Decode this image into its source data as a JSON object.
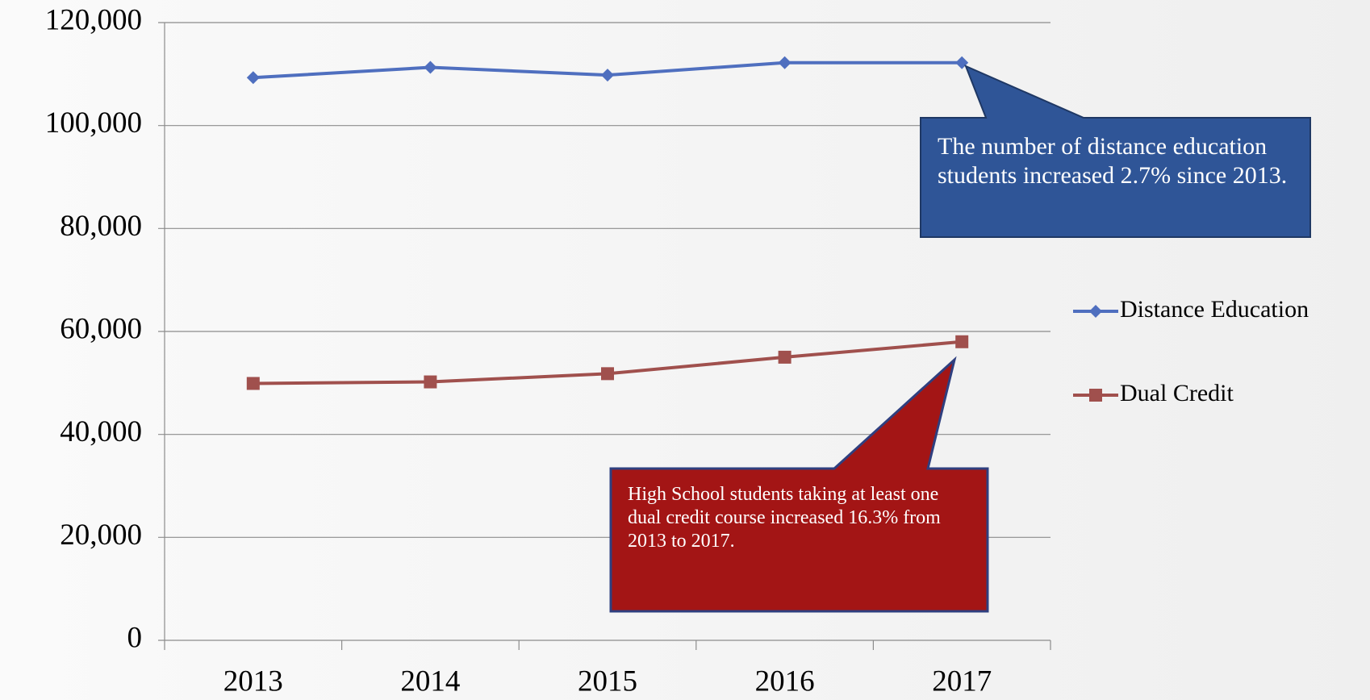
{
  "chart_data": {
    "type": "line",
    "categories": [
      "2013",
      "2014",
      "2015",
      "2016",
      "2017"
    ],
    "series": [
      {
        "name": "Distance Education",
        "color": "#4f6fbf",
        "marker": "diamond",
        "values": [
          109300,
          111300,
          109800,
          112200,
          112200
        ]
      },
      {
        "name": "Dual Credit",
        "color": "#a0504d",
        "marker": "square",
        "values": [
          49900,
          50200,
          51800,
          55000,
          58000
        ]
      }
    ],
    "ylim": [
      0,
      120000
    ],
    "yticks": [
      0,
      {
        "value": 20000,
        "label": "20,000"
      },
      {
        "value": 40000,
        "label": "40,000"
      },
      {
        "value": 60000,
        "label": "60,000"
      },
      {
        "value": 80000,
        "label": "80,000"
      },
      {
        "value": 100000,
        "label": "100,000"
      },
      {
        "value": 120000,
        "label": "120,000"
      }
    ],
    "grid": true,
    "legend": "right",
    "annotations": [
      {
        "text": "The number of distance education students increased 2.7% since 2013.",
        "color": "#2f5597"
      },
      {
        "text": "High School students taking at least one dual credit course increased 16.3% from 2013 to 2017.",
        "color": "#a31515"
      }
    ]
  }
}
